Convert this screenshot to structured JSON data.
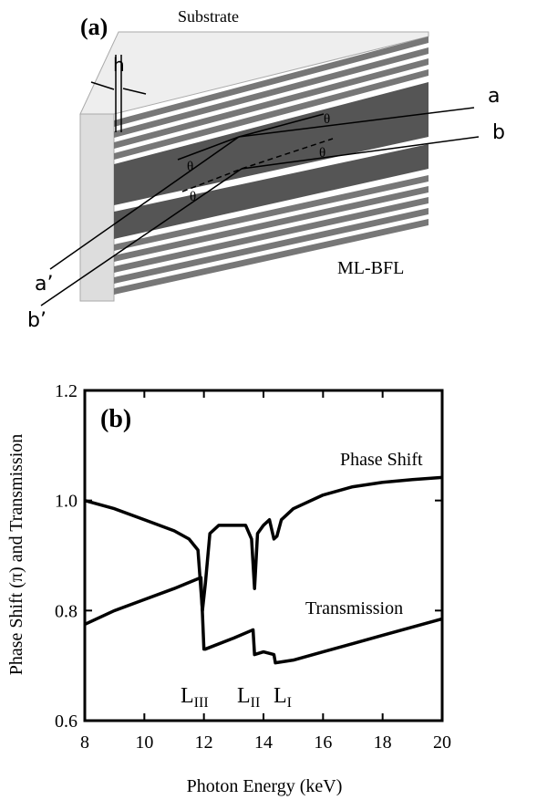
{
  "diagram": {
    "label": "(a)",
    "substrate": "Substrate",
    "h": "h",
    "a": "a",
    "b": "b",
    "a_prime": "a’",
    "b_prime": "b’",
    "theta": [
      "θ",
      "θ",
      "θ",
      "θ"
    ],
    "lens": "ML-BFL"
  },
  "chart_data": {
    "type": "line",
    "label": "(b)",
    "x_label": "Photon Energy (keV)",
    "y_label": "Phase Shift (π) and Transmission",
    "xlim": [
      8,
      20
    ],
    "xticks": [
      8,
      10,
      12,
      14,
      16,
      18,
      20
    ],
    "ylim": [
      0.6,
      1.2
    ],
    "yticks": [
      0.6,
      0.8,
      {
        "value": 1.0,
        "label": "1.0"
      },
      1.2
    ],
    "series": [
      {
        "name": "Phase Shift",
        "color": "#000000",
        "x": [
          8,
          9,
          10,
          11,
          11.5,
          11.8,
          11.95,
          12.05,
          12.2,
          12.5,
          13,
          13.4,
          13.6,
          13.7,
          13.8,
          14.0,
          14.2,
          14.35,
          14.45,
          14.6,
          15,
          16,
          17,
          18,
          19,
          20
        ],
        "values": [
          1.0,
          0.985,
          0.965,
          0.945,
          0.93,
          0.91,
          0.8,
          0.85,
          0.94,
          0.955,
          0.955,
          0.955,
          0.93,
          0.84,
          0.94,
          0.955,
          0.965,
          0.93,
          0.935,
          0.965,
          0.985,
          1.01,
          1.025,
          1.033,
          1.038,
          1.042
        ]
      },
      {
        "name": "Transmission",
        "color": "#000000",
        "x": [
          8,
          9,
          10,
          11,
          11.9,
          12.0,
          12.05,
          13,
          13.65,
          13.7,
          14.0,
          14.35,
          14.4,
          15,
          16,
          17,
          18,
          19,
          20
        ],
        "values": [
          0.775,
          0.8,
          0.82,
          0.84,
          0.86,
          0.73,
          0.73,
          0.75,
          0.765,
          0.72,
          0.725,
          0.72,
          0.705,
          0.71,
          0.725,
          0.74,
          0.755,
          0.77,
          0.785
        ]
      }
    ],
    "edges": [
      {
        "text": "L",
        "sub": "III"
      },
      {
        "text": "L",
        "sub": "II"
      },
      {
        "text": "L",
        "sub": "I"
      }
    ]
  }
}
